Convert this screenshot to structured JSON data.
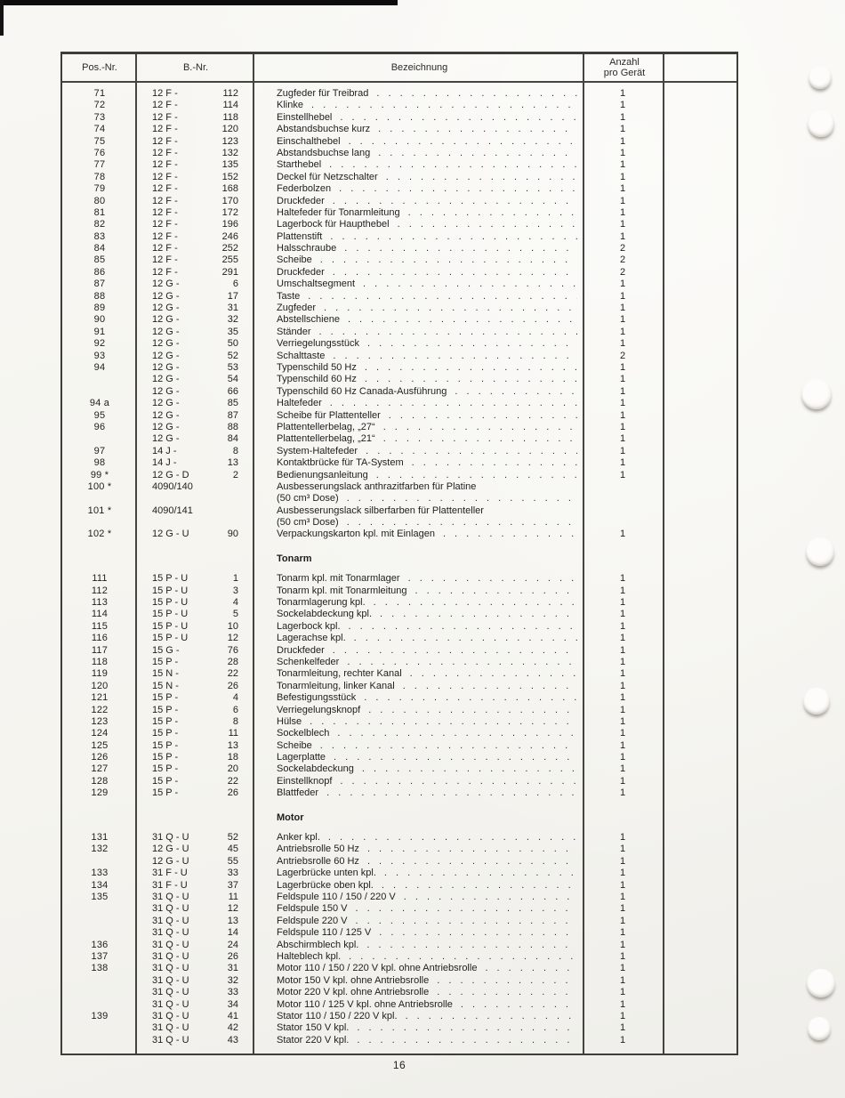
{
  "page": {
    "number": "16"
  },
  "table": {
    "headers": [
      "Pos.-Nr.",
      "B.-Nr.",
      "Bezeichnung",
      "Anzahl\npro Gerät"
    ],
    "rows": [
      {
        "t": "i",
        "pos": "71",
        "b1": "12 F -",
        "b2": "112",
        "d": "Zugfeder für Treibrad",
        "q": "1"
      },
      {
        "t": "i",
        "pos": "72",
        "b1": "12 F -",
        "b2": "114",
        "d": "Klinke",
        "q": "1"
      },
      {
        "t": "i",
        "pos": "73",
        "b1": "12 F -",
        "b2": "118",
        "d": "Einstellhebel",
        "q": "1"
      },
      {
        "t": "i",
        "pos": "74",
        "b1": "12 F -",
        "b2": "120",
        "d": "Abstandsbuchse kurz",
        "q": "1"
      },
      {
        "t": "i",
        "pos": "75",
        "b1": "12 F -",
        "b2": "123",
        "d": "Einschalthebel",
        "q": "1"
      },
      {
        "t": "i",
        "pos": "76",
        "b1": "12 F -",
        "b2": "132",
        "d": "Abstandsbuchse lang",
        "q": "1"
      },
      {
        "t": "i",
        "pos": "77",
        "b1": "12 F -",
        "b2": "135",
        "d": "Starthebel",
        "q": "1"
      },
      {
        "t": "i",
        "pos": "78",
        "b1": "12 F -",
        "b2": "152",
        "d": "Deckel für Netzschalter",
        "q": "1"
      },
      {
        "t": "i",
        "pos": "79",
        "b1": "12 F -",
        "b2": "168",
        "d": "Federbolzen",
        "q": "1"
      },
      {
        "t": "i",
        "pos": "80",
        "b1": "12 F -",
        "b2": "170",
        "d": "Druckfeder",
        "q": "1"
      },
      {
        "t": "i",
        "pos": "81",
        "b1": "12 F -",
        "b2": "172",
        "d": "Haltefeder für Tonarmleitung",
        "q": "1"
      },
      {
        "t": "i",
        "pos": "82",
        "b1": "12 F -",
        "b2": "196",
        "d": "Lagerbock für Haupthebel",
        "q": "1"
      },
      {
        "t": "i",
        "pos": "83",
        "b1": "12 F -",
        "b2": "246",
        "d": "Plattenstift",
        "q": "1"
      },
      {
        "t": "i",
        "pos": "84",
        "b1": "12 F -",
        "b2": "252",
        "d": "Halsschraube",
        "q": "2"
      },
      {
        "t": "i",
        "pos": "85",
        "b1": "12 F -",
        "b2": "255",
        "d": "Scheibe",
        "q": "2"
      },
      {
        "t": "i",
        "pos": "86",
        "b1": "12 F -",
        "b2": "291",
        "d": "Druckfeder",
        "q": "2"
      },
      {
        "t": "i",
        "pos": "87",
        "b1": "12 G -",
        "b2": "6",
        "d": "Umschaltsegment",
        "q": "1"
      },
      {
        "t": "i",
        "pos": "88",
        "b1": "12 G -",
        "b2": "17",
        "d": "Taste",
        "q": "1"
      },
      {
        "t": "i",
        "pos": "89",
        "b1": "12 G -",
        "b2": "31",
        "d": "Zugfeder",
        "q": "1"
      },
      {
        "t": "i",
        "pos": "90",
        "b1": "12 G -",
        "b2": "32",
        "d": "Abstellschiene",
        "q": "1"
      },
      {
        "t": "i",
        "pos": "91",
        "b1": "12 G -",
        "b2": "35",
        "d": "Ständer",
        "q": "1"
      },
      {
        "t": "i",
        "pos": "92",
        "b1": "12 G -",
        "b2": "50",
        "d": "Verriegelungsstück",
        "q": "1"
      },
      {
        "t": "i",
        "pos": "93",
        "b1": "12 G -",
        "b2": "52",
        "d": "Schalttaste",
        "q": "2"
      },
      {
        "t": "i",
        "pos": "94",
        "b1": "12 G -",
        "b2": "53",
        "d": "Typenschild 50 Hz",
        "q": "1"
      },
      {
        "t": "i",
        "pos": "",
        "b1": "12 G -",
        "b2": "54",
        "d": "Typenschild 60 Hz",
        "q": "1"
      },
      {
        "t": "i",
        "pos": "",
        "b1": "12 G -",
        "b2": "66",
        "d": "Typenschild 60 Hz Canada-Ausführung",
        "q": "1"
      },
      {
        "t": "i",
        "pos": "94 a",
        "b1": "12 G -",
        "b2": "85",
        "d": "Haltefeder",
        "q": "1"
      },
      {
        "t": "i",
        "pos": "95",
        "b1": "12 G -",
        "b2": "87",
        "d": "Scheibe für Plattenteller",
        "q": "1"
      },
      {
        "t": "i",
        "pos": "96",
        "b1": "12 G -",
        "b2": "88",
        "d": "Plattentellerbelag, „27“",
        "q": "1"
      },
      {
        "t": "i",
        "pos": "",
        "b1": "12 G -",
        "b2": "84",
        "d": "Plattentellerbelag, „21“",
        "q": "1"
      },
      {
        "t": "i",
        "pos": "97",
        "b1": "14 J -",
        "b2": "8",
        "d": "System-Haltefeder",
        "q": "1"
      },
      {
        "t": "i",
        "pos": "98",
        "b1": "14 J -",
        "b2": "13",
        "d": "Kontaktbrücke für TA-System",
        "q": "1"
      },
      {
        "t": "i",
        "pos": "99 *",
        "b1": "12 G - D",
        "b2": "2",
        "d": "Bedienungsanleitung",
        "q": "1"
      },
      {
        "t": "i",
        "pos": "100 *",
        "b1": "4090/140",
        "b2": "",
        "d": "Ausbesserungslack anthrazitfarben für Platine",
        "q": "",
        "dots": false
      },
      {
        "t": "i",
        "pos": "",
        "b1": "",
        "b2": "",
        "d": "(50 cm³ Dose)",
        "q": ""
      },
      {
        "t": "i",
        "pos": "101 *",
        "b1": "4090/141",
        "b2": "",
        "d": "Ausbesserungslack silberfarben für Plattenteller",
        "q": "",
        "dots": false
      },
      {
        "t": "i",
        "pos": "",
        "b1": "",
        "b2": "",
        "d": "(50 cm³ Dose)",
        "q": ""
      },
      {
        "t": "i",
        "pos": "102 *",
        "b1": "12 G - U",
        "b2": "90",
        "d": "Verpackungskarton kpl. mit Einlagen",
        "q": "1"
      },
      {
        "t": "sp"
      },
      {
        "t": "s",
        "d": "Tonarm"
      },
      {
        "t": "i",
        "pos": "111",
        "b1": "15 P - U",
        "b2": "1",
        "d": "Tonarm kpl. mit Tonarmlager",
        "q": "1"
      },
      {
        "t": "i",
        "pos": "112",
        "b1": "15 P - U",
        "b2": "3",
        "d": "Tonarm kpl. mit Tonarmleitung",
        "q": "1"
      },
      {
        "t": "i",
        "pos": "113",
        "b1": "15 P - U",
        "b2": "4",
        "d": "Tonarmlagerung kpl.",
        "q": "1"
      },
      {
        "t": "i",
        "pos": "114",
        "b1": "15 P - U",
        "b2": "5",
        "d": "Sockelabdeckung kpl.",
        "q": "1"
      },
      {
        "t": "i",
        "pos": "115",
        "b1": "15 P - U",
        "b2": "10",
        "d": "Lagerbock kpl.",
        "q": "1"
      },
      {
        "t": "i",
        "pos": "116",
        "b1": "15 P - U",
        "b2": "12",
        "d": "Lagerachse kpl.",
        "q": "1"
      },
      {
        "t": "i",
        "pos": "117",
        "b1": "15 G -",
        "b2": "76",
        "d": "Druckfeder",
        "q": "1"
      },
      {
        "t": "i",
        "pos": "118",
        "b1": "15 P -",
        "b2": "28",
        "d": "Schenkelfeder",
        "q": "1"
      },
      {
        "t": "i",
        "pos": "119",
        "b1": "15 N -",
        "b2": "22",
        "d": "Tonarmleitung, rechter Kanal",
        "q": "1"
      },
      {
        "t": "i",
        "pos": "120",
        "b1": "15 N -",
        "b2": "26",
        "d": "Tonarmleitung, linker Kanal",
        "q": "1"
      },
      {
        "t": "i",
        "pos": "121",
        "b1": "15 P -",
        "b2": "4",
        "d": "Befestigungsstück",
        "q": "1"
      },
      {
        "t": "i",
        "pos": "122",
        "b1": "15 P -",
        "b2": "6",
        "d": "Verriegelungsknopf",
        "q": "1"
      },
      {
        "t": "i",
        "pos": "123",
        "b1": "15 P -",
        "b2": "8",
        "d": "Hülse",
        "q": "1"
      },
      {
        "t": "i",
        "pos": "124",
        "b1": "15 P -",
        "b2": "11",
        "d": "Sockelblech",
        "q": "1"
      },
      {
        "t": "i",
        "pos": "125",
        "b1": "15 P -",
        "b2": "13",
        "d": "Scheibe",
        "q": "1"
      },
      {
        "t": "i",
        "pos": "126",
        "b1": "15 P -",
        "b2": "18",
        "d": "Lagerplatte",
        "q": "1"
      },
      {
        "t": "i",
        "pos": "127",
        "b1": "15 P -",
        "b2": "20",
        "d": "Sockelabdeckung",
        "q": "1"
      },
      {
        "t": "i",
        "pos": "128",
        "b1": "15 P -",
        "b2": "22",
        "d": "Einstellknopf",
        "q": "1"
      },
      {
        "t": "i",
        "pos": "129",
        "b1": "15 P -",
        "b2": "26",
        "d": "Blattfeder",
        "q": "1"
      },
      {
        "t": "sp"
      },
      {
        "t": "s",
        "d": "Motor"
      },
      {
        "t": "i",
        "pos": "131",
        "b1": "31 Q - U",
        "b2": "52",
        "d": "Anker kpl.",
        "q": "1"
      },
      {
        "t": "i",
        "pos": "132",
        "b1": "12 G - U",
        "b2": "45",
        "d": "Antriebsrolle 50 Hz",
        "q": "1"
      },
      {
        "t": "i",
        "pos": "",
        "b1": "12 G - U",
        "b2": "55",
        "d": "Antriebsrolle 60 Hz",
        "q": "1"
      },
      {
        "t": "i",
        "pos": "133",
        "b1": "31 F - U",
        "b2": "33",
        "d": "Lagerbrücke unten kpl.",
        "q": "1"
      },
      {
        "t": "i",
        "pos": "134",
        "b1": "31 F - U",
        "b2": "37",
        "d": "Lagerbrücke oben kpl.",
        "q": "1"
      },
      {
        "t": "i",
        "pos": "135",
        "b1": "31 Q - U",
        "b2": "11",
        "d": "Feldspule 110 / 150 / 220 V",
        "q": "1"
      },
      {
        "t": "i",
        "pos": "",
        "b1": "31 Q - U",
        "b2": "12",
        "d": "Feldspule 150 V",
        "q": "1"
      },
      {
        "t": "i",
        "pos": "",
        "b1": "31 Q - U",
        "b2": "13",
        "d": "Feldspule 220 V",
        "q": "1"
      },
      {
        "t": "i",
        "pos": "",
        "b1": "31 Q - U",
        "b2": "14",
        "d": "Feldspule 110 / 125 V",
        "q": "1"
      },
      {
        "t": "i",
        "pos": "136",
        "b1": "31 Q - U",
        "b2": "24",
        "d": "Abschirmblech kpl.",
        "q": "1"
      },
      {
        "t": "i",
        "pos": "137",
        "b1": "31 Q - U",
        "b2": "26",
        "d": "Halteblech kpl.",
        "q": "1"
      },
      {
        "t": "i",
        "pos": "138",
        "b1": "31 Q - U",
        "b2": "31",
        "d": "Motor 110 / 150 / 220 V kpl. ohne Antriebsrolle",
        "q": "1"
      },
      {
        "t": "i",
        "pos": "",
        "b1": "31 Q - U",
        "b2": "32",
        "d": "Motor 150 V kpl. ohne Antriebsrolle",
        "q": "1"
      },
      {
        "t": "i",
        "pos": "",
        "b1": "31 Q - U",
        "b2": "33",
        "d": "Motor 220 V kpl. ohne Antriebsrolle",
        "q": "1"
      },
      {
        "t": "i",
        "pos": "",
        "b1": "31 Q - U",
        "b2": "34",
        "d": "Motor 110 / 125 V kpl. ohne Antriebsrolle",
        "q": "1"
      },
      {
        "t": "i",
        "pos": "139",
        "b1": "31 Q - U",
        "b2": "41",
        "d": "Stator 110 / 150 / 220 V kpl.",
        "q": "1"
      },
      {
        "t": "i",
        "pos": "",
        "b1": "31 Q - U",
        "b2": "42",
        "d": "Stator 150 V kpl.",
        "q": "1"
      },
      {
        "t": "i",
        "pos": "",
        "b1": "31 Q - U",
        "b2": "43",
        "d": "Stator 220 V kpl.",
        "q": "1"
      }
    ]
  },
  "colors": {
    "paper": "#f6f5f1",
    "line": "#46443f",
    "text": "#1f1e1c"
  }
}
